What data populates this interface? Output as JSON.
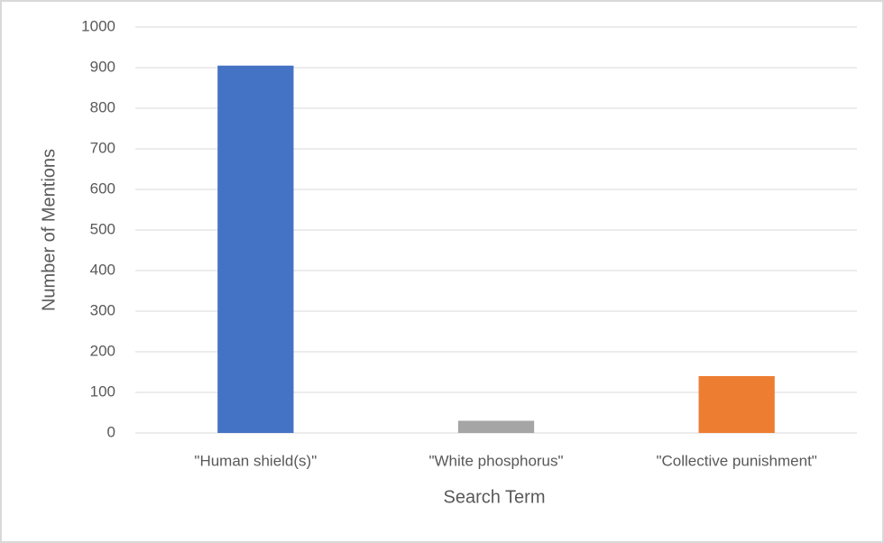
{
  "chart_data": {
    "type": "bar",
    "categories": [
      "\"Human shield(s)\"",
      "\"White phosphorus\"",
      "\"Collective punishment\""
    ],
    "values": [
      905,
      30,
      140
    ],
    "colors": [
      "#4472c4",
      "#a5a5a5",
      "#ed7d31"
    ],
    "x_label": "Search Term",
    "y_label": "Number of Mentions",
    "ylim": [
      0,
      1000
    ],
    "yticks": [
      0,
      100,
      200,
      300,
      400,
      500,
      600,
      700,
      800,
      900,
      1000
    ],
    "grid": true
  }
}
